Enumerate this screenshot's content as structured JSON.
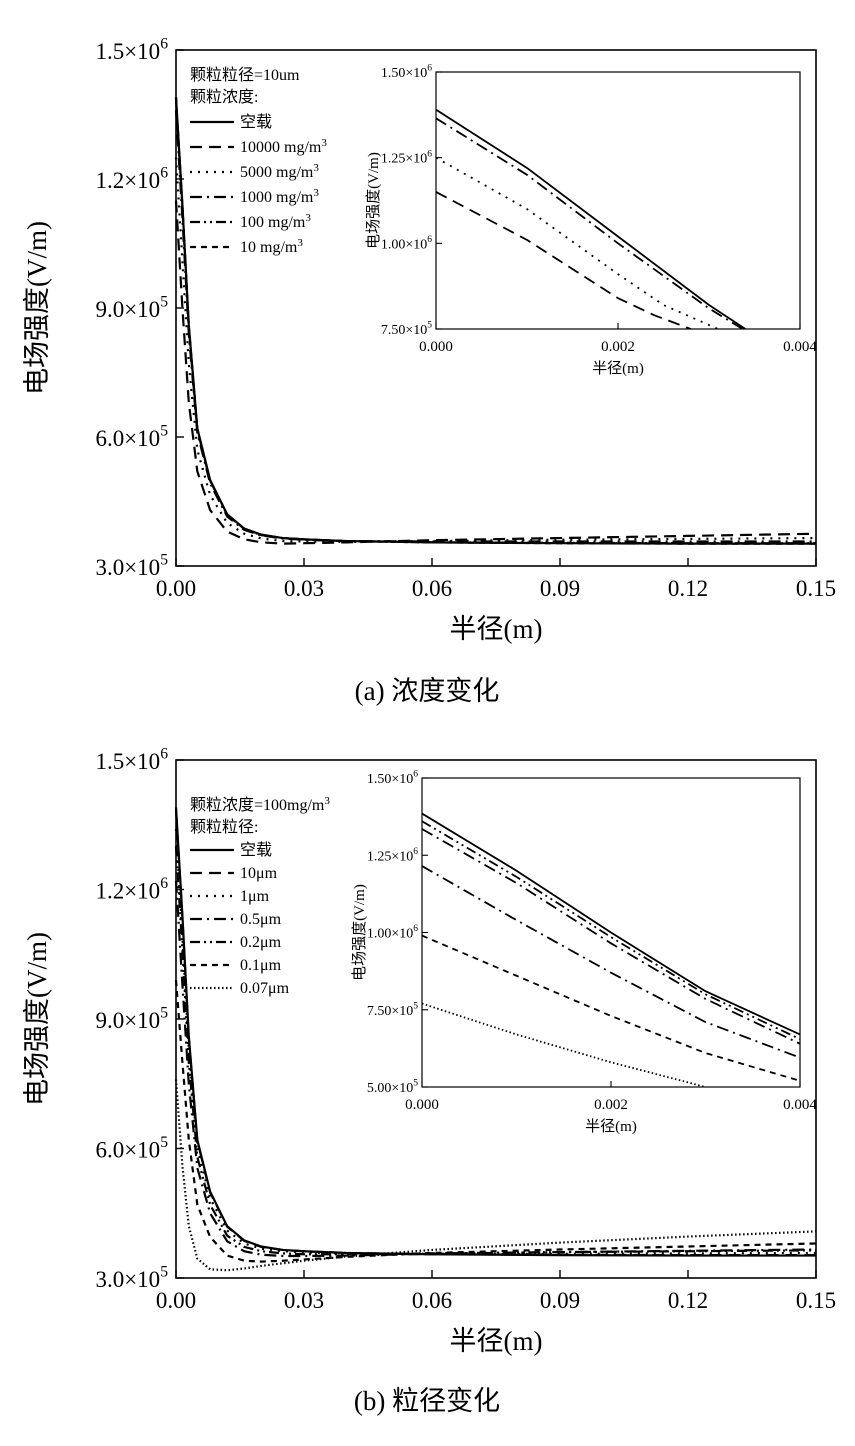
{
  "charts": [
    {
      "caption": "(a)  浓度变化",
      "type": "line",
      "xlabel": "半径(m)",
      "ylabel": "电场强度(V/m)",
      "xlim": [
        0,
        0.15
      ],
      "ylim": [
        300000,
        1500000
      ],
      "xticks": [
        "0.00",
        "0.03",
        "0.06",
        "0.09",
        "0.12",
        "0.15"
      ],
      "yticks": [
        {
          "mant": "3.0",
          "exp": "5"
        },
        {
          "mant": "6.0",
          "exp": "5"
        },
        {
          "mant": "9.0",
          "exp": "5"
        },
        {
          "mant": "1.2",
          "exp": "6"
        },
        {
          "mant": "1.5",
          "exp": "6"
        }
      ],
      "legend": {
        "header1": "颗粒粒径=10um",
        "header2": "颗粒浓度:",
        "placement": "top-left",
        "entries": [
          {
            "label": "空载",
            "dash": "solid"
          },
          {
            "label": "10000 mg/m",
            "sup": "3",
            "dash": "dash"
          },
          {
            "label": "5000 mg/m",
            "sup": "3",
            "dash": "dot"
          },
          {
            "label": "1000 mg/m",
            "sup": "3",
            "dash": "dashdot"
          },
          {
            "label": "100 mg/m",
            "sup": "3",
            "dash": "dashdotdot"
          },
          {
            "label": "10 mg/m",
            "sup": "3",
            "dash": "shortdash"
          }
        ]
      },
      "series": [
        {
          "dash": "solid",
          "x": [
            0,
            0.0015,
            0.003,
            0.005,
            0.008,
            0.012,
            0.016,
            0.02,
            0.025,
            0.03,
            0.04,
            0.06,
            0.09,
            0.12,
            0.15
          ],
          "y": [
            1390000,
            1140000,
            860000,
            620000,
            500000,
            420000,
            387000,
            373000,
            365000,
            362000,
            358000,
            355000,
            353000,
            352000,
            352000
          ]
        },
        {
          "dash": "dash",
          "x": [
            0,
            0.0015,
            0.003,
            0.005,
            0.008,
            0.012,
            0.016,
            0.02,
            0.025,
            0.03,
            0.04,
            0.06,
            0.09,
            0.12,
            0.15
          ],
          "y": [
            1150000,
            900000,
            680000,
            520000,
            430000,
            380000,
            362000,
            355000,
            352000,
            353000,
            355000,
            360000,
            365000,
            370000,
            375000
          ]
        },
        {
          "dash": "dot",
          "x": [
            0,
            0.0015,
            0.003,
            0.005,
            0.008,
            0.012,
            0.016,
            0.02,
            0.025,
            0.03,
            0.04,
            0.06,
            0.09,
            0.12,
            0.15
          ],
          "y": [
            1250000,
            1010000,
            770000,
            570000,
            465000,
            400000,
            375000,
            364000,
            358000,
            357000,
            356000,
            358000,
            361000,
            363000,
            365000
          ]
        },
        {
          "dash": "dashdot",
          "x": [
            0,
            0.0015,
            0.003,
            0.005,
            0.008,
            0.012,
            0.016,
            0.02,
            0.025,
            0.03,
            0.04,
            0.06,
            0.09,
            0.12,
            0.15
          ],
          "y": [
            1360000,
            1110000,
            840000,
            610000,
            492000,
            415000,
            384000,
            371000,
            364000,
            361000,
            358000,
            357000,
            357000,
            357000,
            357000
          ]
        },
        {
          "dash": "dashdotdot",
          "x": [
            0,
            0.0015,
            0.003,
            0.005,
            0.008,
            0.012,
            0.016,
            0.02,
            0.025,
            0.03,
            0.04,
            0.06,
            0.09,
            0.12,
            0.15
          ],
          "y": [
            1385000,
            1135000,
            855000,
            617000,
            498000,
            419000,
            386000,
            372000,
            365000,
            362000,
            358000,
            355000,
            354000,
            353000,
            353000
          ]
        },
        {
          "dash": "shortdash",
          "x": [
            0,
            0.0015,
            0.003,
            0.005,
            0.008,
            0.012,
            0.016,
            0.02,
            0.025,
            0.03,
            0.04,
            0.06,
            0.09,
            0.12,
            0.15
          ],
          "y": [
            1390000,
            1138000,
            858000,
            619000,
            499000,
            420000,
            386000,
            372000,
            365000,
            362000,
            358000,
            355000,
            353000,
            352000,
            352000
          ]
        }
      ],
      "inset": {
        "xlabel": "半径(m)",
        "ylabel": "电场强度(V/m)",
        "xlim": [
          0,
          0.004
        ],
        "ylim": [
          750000,
          1500000
        ],
        "xticks": [
          "0.000",
          "0.002",
          "0.004"
        ],
        "yticks": [
          {
            "mant": "7.50",
            "exp": "5"
          },
          {
            "mant": "1.00",
            "exp": "6"
          },
          {
            "mant": "1.25",
            "exp": "6"
          },
          {
            "mant": "1.50",
            "exp": "6"
          }
        ],
        "series": [
          {
            "dash": "solid",
            "x": [
              0,
              0.001,
              0.002,
              0.003,
              0.0034
            ],
            "y": [
              1390000,
              1220000,
              1020000,
              820000,
              750000
            ]
          },
          {
            "dash": "dashdot",
            "x": [
              0,
              0.001,
              0.002,
              0.003,
              0.0034
            ],
            "y": [
              1365000,
              1200000,
              1000000,
              810000,
              745000
            ]
          },
          {
            "dash": "dot",
            "x": [
              0,
              0.001,
              0.002,
              0.0025,
              0.0031
            ],
            "y": [
              1250000,
              1100000,
              910000,
              820000,
              750000
            ]
          },
          {
            "dash": "dash",
            "x": [
              0,
              0.001,
              0.002,
              0.0024,
              0.0028
            ],
            "y": [
              1150000,
              1010000,
              840000,
              790000,
              750000
            ]
          }
        ]
      }
    },
    {
      "caption": "(b)  粒径变化",
      "type": "line",
      "xlabel": "半径(m)",
      "ylabel": "电场强度(V/m)",
      "xlim": [
        0,
        0.15
      ],
      "ylim": [
        300000,
        1500000
      ],
      "xticks": [
        "0.00",
        "0.03",
        "0.06",
        "0.09",
        "0.12",
        "0.15"
      ],
      "yticks": [
        {
          "mant": "3.0",
          "exp": "5"
        },
        {
          "mant": "6.0",
          "exp": "5"
        },
        {
          "mant": "9.0",
          "exp": "5"
        },
        {
          "mant": "1.2",
          "exp": "6"
        },
        {
          "mant": "1.5",
          "exp": "6"
        }
      ],
      "legend": {
        "header1": "颗粒浓度=100mg/m",
        "header1_sup": "3",
        "header2": "颗粒粒径:",
        "placement": "top-left",
        "entries": [
          {
            "label": "空载",
            "dash": "solid"
          },
          {
            "label": "10μm",
            "dash": "dash"
          },
          {
            "label": "1μm",
            "dash": "dot"
          },
          {
            "label": "0.5μm",
            "dash": "dashdot"
          },
          {
            "label": "0.2μm",
            "dash": "dashdotdot"
          },
          {
            "label": "0.1μm",
            "dash": "shortdash"
          },
          {
            "label": "0.07μm",
            "dash": "densedot"
          }
        ]
      },
      "series": [
        {
          "dash": "solid",
          "x": [
            0,
            0.0015,
            0.003,
            0.005,
            0.008,
            0.012,
            0.016,
            0.02,
            0.025,
            0.03,
            0.04,
            0.06,
            0.09,
            0.12,
            0.15
          ],
          "y": [
            1390000,
            1140000,
            860000,
            620000,
            500000,
            420000,
            387000,
            373000,
            365000,
            362000,
            358000,
            355000,
            353000,
            352000,
            352000
          ]
        },
        {
          "dash": "dash",
          "x": [
            0,
            0.0015,
            0.003,
            0.005,
            0.008,
            0.012,
            0.016,
            0.02,
            0.025,
            0.03,
            0.04,
            0.06,
            0.09,
            0.12,
            0.15
          ],
          "y": [
            1385000,
            1135000,
            855000,
            617000,
            498000,
            419000,
            386000,
            372000,
            365000,
            362000,
            358000,
            355000,
            354000,
            353000,
            353000
          ]
        },
        {
          "dash": "dot",
          "x": [
            0,
            0.0015,
            0.003,
            0.005,
            0.008,
            0.012,
            0.016,
            0.02,
            0.025,
            0.03,
            0.04,
            0.06,
            0.09,
            0.12,
            0.15
          ],
          "y": [
            1340000,
            1090000,
            830000,
            600000,
            485000,
            410000,
            380000,
            368000,
            362000,
            359000,
            357000,
            356000,
            356000,
            357000,
            358000
          ]
        },
        {
          "dash": "dashdot",
          "x": [
            0,
            0.0015,
            0.003,
            0.005,
            0.008,
            0.012,
            0.016,
            0.02,
            0.025,
            0.03,
            0.04,
            0.06,
            0.09,
            0.12,
            0.15
          ],
          "y": [
            1220000,
            980000,
            750000,
            555000,
            450000,
            385000,
            362000,
            354000,
            351000,
            351000,
            352000,
            356000,
            360000,
            363000,
            366000
          ]
        },
        {
          "dash": "dashdotdot",
          "x": [
            0,
            0.0015,
            0.003,
            0.005,
            0.008,
            0.012,
            0.016,
            0.02,
            0.025,
            0.03,
            0.04,
            0.06,
            0.09,
            0.12,
            0.15
          ],
          "y": [
            1300000,
            1060000,
            800000,
            580000,
            470000,
            398000,
            372000,
            362000,
            357000,
            355000,
            355000,
            357000,
            360000,
            362000,
            364000
          ]
        },
        {
          "dash": "shortdash",
          "x": [
            0,
            0.0015,
            0.003,
            0.005,
            0.008,
            0.012,
            0.016,
            0.02,
            0.025,
            0.03,
            0.04,
            0.06,
            0.09,
            0.12,
            0.15
          ],
          "y": [
            990000,
            800000,
            620000,
            470000,
            395000,
            352000,
            340000,
            338000,
            340000,
            343000,
            349000,
            358000,
            366000,
            373000,
            380000
          ]
        },
        {
          "dash": "densedot",
          "x": [
            0,
            0.0015,
            0.003,
            0.005,
            0.008,
            0.012,
            0.016,
            0.02,
            0.025,
            0.03,
            0.04,
            0.06,
            0.09,
            0.12,
            0.15
          ],
          "y": [
            760000,
            560000,
            420000,
            345000,
            320000,
            318000,
            322000,
            328000,
            334000,
            340000,
            350000,
            365000,
            382000,
            396000,
            408000
          ]
        }
      ],
      "inset": {
        "xlabel": "半径(m)",
        "ylabel": "电场强度(V/m)",
        "xlim": [
          0,
          0.004
        ],
        "ylim": [
          500000,
          1500000
        ],
        "xticks": [
          "0.000",
          "0.002",
          "0.004"
        ],
        "yticks": [
          {
            "mant": "5.00",
            "exp": "5"
          },
          {
            "mant": "7.50",
            "exp": "5"
          },
          {
            "mant": "1.00",
            "exp": "6"
          },
          {
            "mant": "1.25",
            "exp": "6"
          },
          {
            "mant": "1.50",
            "exp": "6"
          }
        ],
        "series": [
          {
            "dash": "solid",
            "x": [
              0,
              0.001,
              0.002,
              0.003,
              0.004
            ],
            "y": [
              1385000,
              1200000,
              1000000,
              810000,
              670000
            ]
          },
          {
            "dash": "dashdotdot",
            "x": [
              0,
              0.001,
              0.002,
              0.003,
              0.004
            ],
            "y": [
              1360000,
              1180000,
              985000,
              800000,
              655000
            ]
          },
          {
            "dash": "dashdot",
            "x": [
              0,
              0.001,
              0.002,
              0.003,
              0.004
            ],
            "y": [
              1335000,
              1160000,
              965000,
              785000,
              640000
            ]
          },
          {
            "dash": "dashdot",
            "x": [
              0,
              0.001,
              0.002,
              0.003,
              0.004
            ],
            "y": [
              1215000,
              1040000,
              870000,
              710000,
              595000
            ]
          },
          {
            "dash": "shortdash",
            "x": [
              0,
              0.001,
              0.002,
              0.003,
              0.004
            ],
            "y": [
              990000,
              860000,
              730000,
              610000,
              520000
            ]
          },
          {
            "dash": "densedot",
            "x": [
              0,
              0.001,
              0.002,
              0.003
            ],
            "y": [
              770000,
              670000,
              580000,
              500000
            ]
          }
        ]
      }
    }
  ]
}
